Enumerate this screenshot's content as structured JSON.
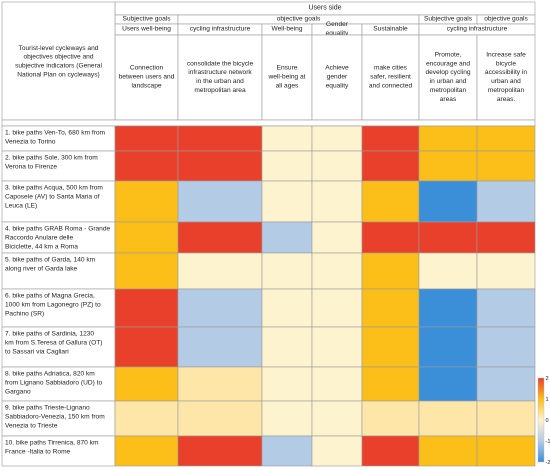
{
  "chart_data": {
    "type": "heatmap",
    "corner_label": "Tourist-level cycleways and objectives objective and subjective indicators (General National Plan on cycleways)",
    "top_header": "Users side",
    "group_headers": [
      {
        "label": "Subjective goals",
        "span": [
          0,
          0
        ]
      },
      {
        "label": "objective goals",
        "span": [
          1,
          4
        ]
      },
      {
        "label": "Subjective goals",
        "span": [
          5,
          5
        ]
      },
      {
        "label": "objective goals",
        "span": [
          6,
          6
        ]
      }
    ],
    "subgroup_headers": [
      {
        "label": "Users well-being",
        "span": [
          0,
          0
        ]
      },
      {
        "label": "cycling infrastructure",
        "span": [
          1,
          1
        ]
      },
      {
        "label": "Well-being",
        "span": [
          2,
          2
        ]
      },
      {
        "label": "Gender equality",
        "span": [
          3,
          3
        ]
      },
      {
        "label": "Sustainable",
        "span": [
          4,
          4
        ]
      },
      {
        "label": "cycling infrastructure",
        "span": [
          5,
          6
        ]
      }
    ],
    "columns": [
      "Connection between users and landscape",
      "consolidate the bicycle infrastructure network in the urban and metropolitan area",
      "Ensure well-being at all ages",
      "Achieve gender equality",
      "make cities safer, resilient and connected",
      "Promote, encourage and develop cycling in urban and metropolitan areas",
      "Increase safe bicycle accessibility in urban and metropolitan areas."
    ],
    "rows": [
      "1. bike paths Ven-To, 680 km from Venezia to Torino",
      "2. bike paths Sole, 300 km from Verona to Firenze",
      "3. bike paths Acqua, 500 km from Caposele (AV) to Santa Maria of Leuca (LE)",
      "4. bike paths GRAB Roma - Grande Raccordo Anulare delle Biciclette, 44 km a Roma",
      "5. bike paths of Garda, 140 km along river of Garda lake",
      "6. bike paths of Magna Grecia, 1000 km from Lagonegro (PZ) to Pachino (SR)",
      "7. bike paths of Sardinia, 1230 km from S.Teresa of Gallura (OT) to Sassari via Cagliari",
      "8. bike paths Adriatica, 820 km from Lignano Sabbiadoro (UD) to Gargano",
      "9. bike paths Trieste-Lignano Sabbiadoro-Venezia, 150 km from Venezia to Trieste",
      "10. bike paths Tirrenica, 870 km France -Italia to Rome"
    ],
    "values": [
      [
        2,
        2,
        0,
        0,
        2,
        1,
        1
      ],
      [
        2,
        2,
        0,
        0,
        2,
        1,
        1
      ],
      [
        1,
        -1,
        0,
        0,
        1,
        -2,
        -1
      ],
      [
        1,
        2,
        -1,
        0,
        2,
        2,
        2
      ],
      [
        1,
        0,
        0,
        0,
        1,
        0,
        0
      ],
      [
        2,
        -1,
        0,
        0,
        1,
        -2,
        -1
      ],
      [
        2,
        -1,
        0,
        0,
        1,
        -2,
        -1
      ],
      [
        1,
        0.5,
        0,
        0,
        1,
        -2,
        -1
      ],
      [
        0.5,
        0.5,
        0,
        0,
        0.5,
        0.5,
        0.5
      ],
      [
        1,
        2,
        -1,
        0,
        2,
        1,
        1
      ]
    ],
    "colorbar": {
      "ticks": [
        2,
        1,
        0,
        -1,
        -2
      ],
      "range": [
        -2,
        2
      ],
      "colors": {
        "high": "#e8402a",
        "mid_high": "#fcbf19",
        "mid": "#fdf3cf",
        "mid_low": "#b4cbe6",
        "low": "#3b8fd9"
      }
    },
    "grid": true
  }
}
